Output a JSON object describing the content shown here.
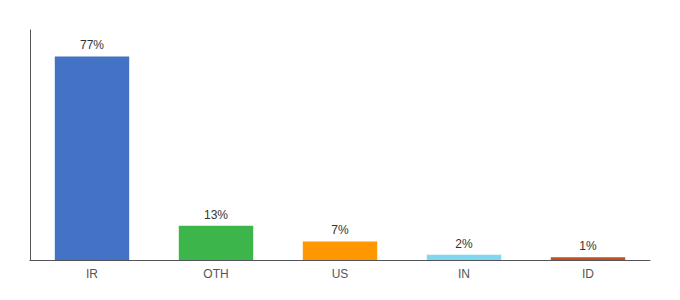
{
  "chart_data": {
    "type": "bar",
    "categories": [
      "IR",
      "OTH",
      "US",
      "IN",
      "ID"
    ],
    "values": [
      77,
      13,
      7,
      2,
      1
    ],
    "value_labels": [
      "77%",
      "13%",
      "7%",
      "2%",
      "1%"
    ],
    "colors": [
      "#4472c4",
      "#3cb54a",
      "#ff9800",
      "#80d8f0",
      "#c0511a"
    ],
    "ylim": [
      0,
      87
    ],
    "data_labels": true,
    "tick_labels": "x",
    "grid": false
  }
}
